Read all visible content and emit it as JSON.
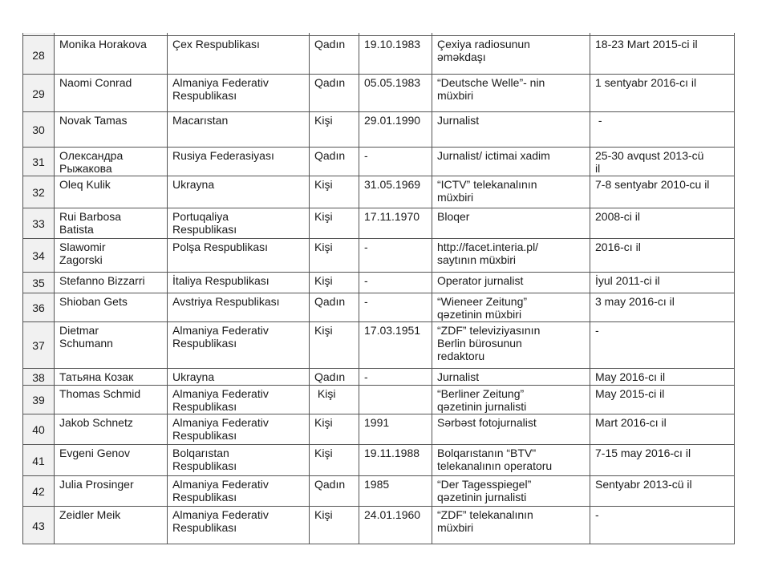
{
  "page": {
    "background": "#ffffff",
    "table_border_color": "#555555",
    "number_column_shading": "#f1f1f1"
  },
  "table": {
    "rows": [
      {
        "no": "28",
        "name": "Monika Horakova",
        "country": "Çex Respublikası",
        "gender": "Qadın",
        "birth": "19.10.1983",
        "role": "Çexiya radiosunun\nəməkdaşı",
        "period": "18-23 Mart 2015-ci il"
      },
      {
        "no": "29",
        "name": "Naomi Conrad",
        "country": "Almaniya Federativ\nRespublikası",
        "gender": "Qadın",
        "birth": "05.05.1983",
        "role": "“Deutsche Welle”- nin\nmüxbiri",
        "period": "1 sentyabr 2016-cı il"
      },
      {
        "no": "30",
        "name": "Novak Tamas",
        "country": "Macarıstan",
        "gender": "Kişi",
        "birth": "29.01.1990",
        "role": "Jurnalist",
        "period": " -"
      },
      {
        "no": "31",
        "name": "Олександра\nРыжакова",
        "country": "Rusiya Federasiyası",
        "gender": "Qadın",
        "birth": "-",
        "role": "Jurnalist/ ictimai xadim",
        "period": "25-30 avqust 2013-cü\nil"
      },
      {
        "no": "32",
        "name": "Oleq Kulik",
        "country": "Ukrayna",
        "gender": "Kişi",
        "birth": "31.05.1969",
        "role": "“ICTV” telekanalının\nmüxbiri",
        "period": "7-8 sentyabr 2010-cu il"
      },
      {
        "no": "33",
        "name": "Rui Barbosa\nBatista",
        "country": "Portuqaliya\nRespublikası",
        "gender": "Kişi",
        "birth": "17.11.1970",
        "role": "Bloqer",
        "period": "2008-ci il"
      },
      {
        "no": "34",
        "name": "Slawomir\nZagorski",
        "country": "Polşa Respublikası",
        "gender": "Kişi",
        "birth": "-",
        "role": "http://facet.interia.pl/\nsaytının müxbiri",
        "period": "2016-cı il"
      },
      {
        "no": "35",
        "name": "Stefanno Bizzarri",
        "country": "İtaliya Respublikası",
        "gender": "Kişi",
        "birth": "-",
        "role": "Operator jurnalist",
        "period": "İyul 2011-ci il"
      },
      {
        "no": "36",
        "name": "Shioban Gets",
        "country": "Avstriya Respublikası",
        "gender": "Qadın",
        "birth": "-",
        "role": "“Wieneer Zeitung”\nqəzetinin müxbiri",
        "period": "3 may 2016-cı il"
      },
      {
        "no": "37",
        "name": "Dietmar\nSchumann",
        "country": "Almaniya Federativ\nRespublikası",
        "gender": "Kişi",
        "birth": "17.03.1951",
        "role": "“ZDF” televiziyasının\nBerlin bürosunun\nredaktoru",
        "period": "-"
      },
      {
        "no": "38",
        "name": "Татьяна Козак",
        "country": "Ukrayna",
        "gender": "Qadın",
        "birth": "-",
        "role": "Jurnalist",
        "period": "May 2016-cı il"
      },
      {
        "no": "39",
        "name": "Thomas Schmid",
        "country": "Almaniya Federativ\nRespublikası",
        "gender": " Kişi",
        "birth": "",
        "role": "“Berliner Zeitung”\nqəzetinin jurnalisti",
        "period": "May 2015-ci il"
      },
      {
        "no": "40",
        "name": "Jakob Schnetz",
        "country": "Almaniya Federativ\nRespublikası",
        "gender": "Kişi",
        "birth": "1991",
        "role": "Sərbəst fotojurnalist",
        "period": "Mart 2016-cı il"
      },
      {
        "no": "41",
        "name": "Evgeni Genov",
        "country": "Bolqarıstan\nRespublikası",
        "gender": "Kişi",
        "birth": "19.11.1988",
        "role": "Bolqarıstanın  “BTV\"\ntelekanalının operatoru",
        "period": "7-15 may 2016-cı il"
      },
      {
        "no": "42",
        "name": "Julia Prosinger",
        "country": "Almaniya Federativ\nRespublikası",
        "gender": "Qadın",
        "birth": "1985",
        "role": "“Der Tagesspiegel”\nqəzetinin jurnalisti",
        "period": "Sentyabr 2013-cü il"
      },
      {
        "no": "43",
        "name": "Zeidler Meik",
        "country": "Almaniya Federativ\nRespublikası",
        "gender": "Kişi",
        "birth": "24.01.1960",
        "role": "“ZDF” telekanalının\nmüxbiri",
        "period": "-"
      }
    ]
  }
}
